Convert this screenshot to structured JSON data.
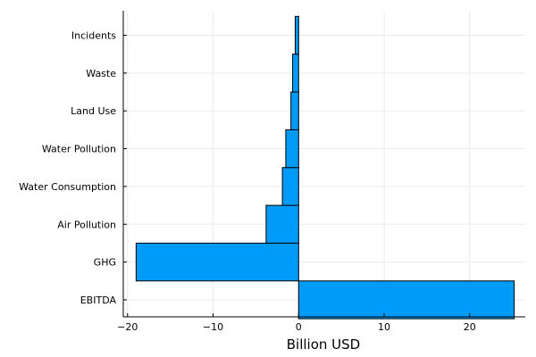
{
  "chart_data": {
    "type": "bar",
    "orientation": "horizontal",
    "title": "",
    "xlabel": "Billion USD",
    "ylabel": "",
    "categories": [
      "EBITDA",
      "GHG",
      "Air Pollution",
      "Water Consumption",
      "Water Pollution",
      "Land Use",
      "Waste",
      "Incidents"
    ],
    "values": [
      25.2,
      -19.0,
      -3.8,
      -1.9,
      -1.5,
      -0.9,
      -0.7,
      -0.4
    ],
    "xlim": [
      -20.5,
      26.5
    ],
    "x_ticks": [
      -20,
      -10,
      0,
      10,
      20
    ],
    "x_tick_labels": [
      "−20",
      "−10",
      "0",
      "10",
      "20"
    ],
    "grid": true,
    "legend": "none",
    "colors": {
      "bar": "#009AF9",
      "bar_stroke": "#000000",
      "grid": "#EBEBEB",
      "axis": "#000000"
    }
  }
}
